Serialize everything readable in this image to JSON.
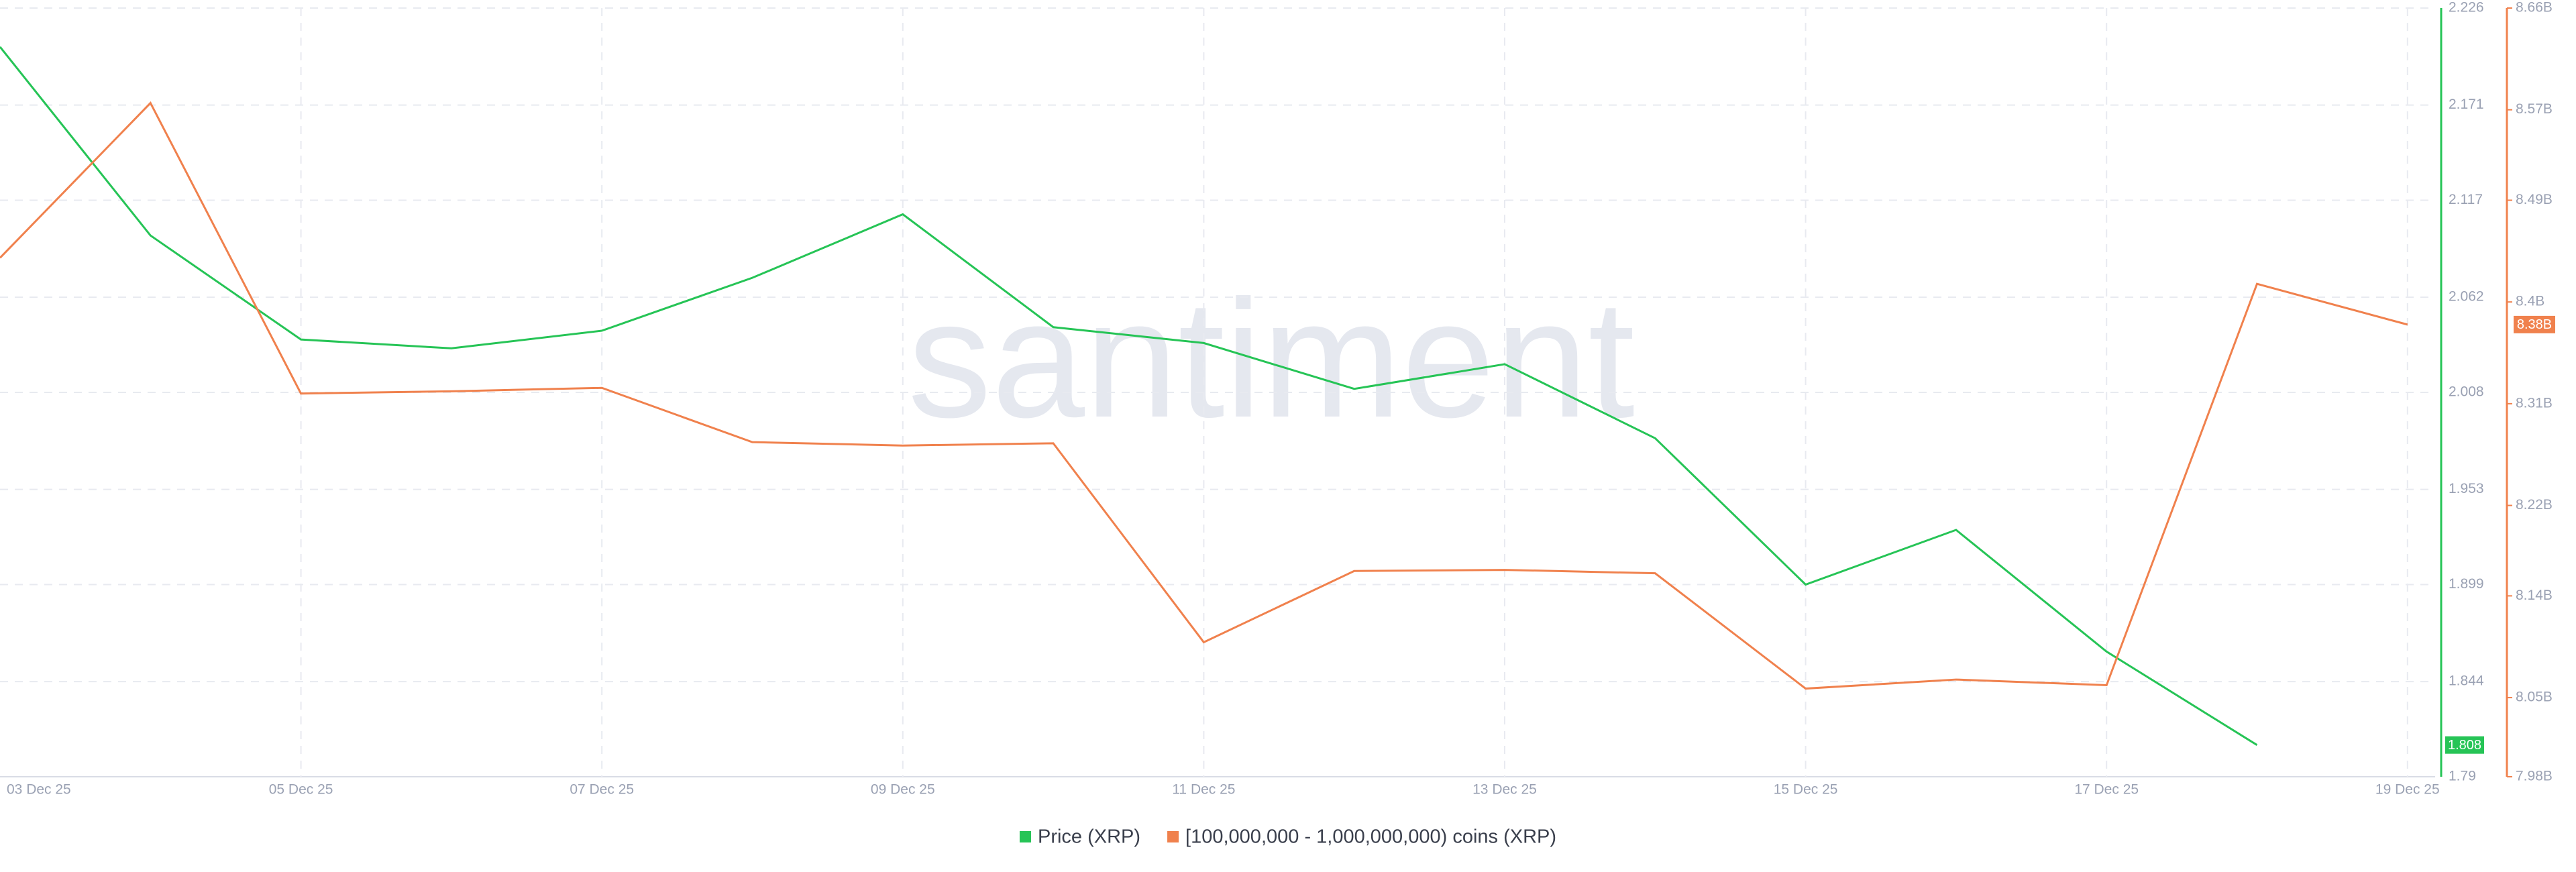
{
  "chart_data": {
    "type": "line",
    "watermark": "santiment",
    "categories": [
      "03 Dec 25",
      null,
      "05 Dec 25",
      null,
      "07 Dec 25",
      null,
      "09 Dec 25",
      null,
      "11 Dec 25",
      null,
      "13 Dec 25",
      null,
      "15 Dec 25",
      null,
      "17 Dec 25",
      null,
      "19 Dec 25"
    ],
    "series": [
      {
        "name": "Price (XRP)",
        "color": "#26c456",
        "values": [
          2.204,
          2.097,
          2.038,
          2.033,
          2.043,
          2.073,
          2.109,
          2.045,
          2.036,
          2.01,
          2.024,
          1.982,
          1.899,
          1.93,
          1.861,
          1.808,
          null
        ]
      },
      {
        "name": "[100,000,000 - 1,000,000,000) coins (XRP)",
        "color": "#f0814d",
        "axis": "y2",
        "values": [
          8439000000,
          8576000000,
          8319000000,
          8321000000,
          8324000000,
          8276000000,
          8273000000,
          8275000000,
          8099000000,
          8162000000,
          8163000000,
          8160000000,
          8058000000,
          8066000000,
          8061000000,
          8416000000,
          8380000000
        ],
        "value_labels": [
          null,
          null,
          null,
          null,
          null,
          null,
          null,
          null,
          null,
          null,
          null,
          null,
          null,
          null,
          null,
          null,
          "8.38B"
        ]
      }
    ],
    "ylim": [
      1.79,
      2.226
    ],
    "yticks": [
      1.79,
      1.844,
      1.899,
      1.953,
      2.008,
      2.062,
      2.117,
      2.171,
      2.226
    ],
    "y2lim": [
      7980000000,
      8660000000
    ],
    "y2ticks": [
      {
        "value": 7980000000,
        "label": "7.98B"
      },
      {
        "value": 8050000000,
        "label": "8.05B"
      },
      {
        "value": 8140000000,
        "label": "8.14B"
      },
      {
        "value": 8220000000,
        "label": "8.22B"
      },
      {
        "value": 8310000000,
        "label": "8.31B"
      },
      {
        "value": 8400000000,
        "label": "8.4B"
      },
      {
        "value": 8490000000,
        "label": "8.49B"
      },
      {
        "value": 8570000000,
        "label": "8.57B"
      },
      {
        "value": 8660000000,
        "label": "8.66B"
      }
    ],
    "grid": true,
    "legend": "bottom"
  }
}
